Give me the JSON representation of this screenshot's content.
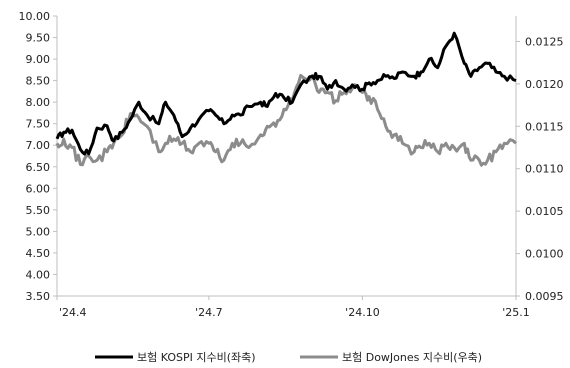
{
  "chart_data": {
    "type": "line",
    "title": "",
    "xlabel": "",
    "ylabel_left": "",
    "ylabel_right": "",
    "x_ticks": [
      "'24.4",
      "'24.7",
      "'24.10",
      "'25.1"
    ],
    "y_left": {
      "min": 3.5,
      "max": 10.0,
      "ticks": [
        "3.50",
        "4.00",
        "4.50",
        "5.00",
        "5.50",
        "6.00",
        "6.50",
        "7.00",
        "7.50",
        "8.00",
        "8.50",
        "9.00",
        "9.50",
        "10.00"
      ]
    },
    "y_right": {
      "min": 0.0095,
      "max": 0.0128,
      "ticks": [
        "0.0095",
        "0.0100",
        "0.0105",
        "0.0110",
        "0.0115",
        "0.0120",
        "0.0125"
      ]
    },
    "grid": false,
    "legend_position": "bottom",
    "colors": {
      "kospi": "#000000",
      "dow": "#8c8c8c",
      "axis": "#bfbfbf"
    },
    "series": [
      {
        "name": "보험 KOSPI 지수비(좌축)",
        "axis": "left",
        "x": [
          "2024-04-01",
          "2024-04-05",
          "2024-04-10",
          "2024-04-15",
          "2024-04-20",
          "2024-04-25",
          "2024-05-01",
          "2024-05-05",
          "2024-05-10",
          "2024-05-15",
          "2024-05-20",
          "2024-05-25",
          "2024-06-01",
          "2024-06-05",
          "2024-06-10",
          "2024-06-15",
          "2024-06-20",
          "2024-06-25",
          "2024-07-01",
          "2024-07-05",
          "2024-07-10",
          "2024-07-15",
          "2024-07-20",
          "2024-07-25",
          "2024-08-01",
          "2024-08-05",
          "2024-08-10",
          "2024-08-15",
          "2024-08-20",
          "2024-08-25",
          "2024-09-01",
          "2024-09-05",
          "2024-09-10",
          "2024-09-15",
          "2024-09-20",
          "2024-09-25",
          "2024-10-01",
          "2024-10-05",
          "2024-10-10",
          "2024-10-15",
          "2024-10-20",
          "2024-10-25",
          "2024-11-01",
          "2024-11-05",
          "2024-11-10",
          "2024-11-15",
          "2024-11-20",
          "2024-11-25",
          "2024-12-01",
          "2024-12-05",
          "2024-12-10",
          "2024-12-15",
          "2024-12-20",
          "2024-12-25",
          "2025-01-01"
        ],
        "values": [
          7.15,
          7.3,
          7.35,
          6.9,
          6.8,
          7.4,
          7.45,
          7.1,
          7.3,
          7.6,
          8.0,
          7.7,
          7.5,
          8.0,
          7.7,
          7.2,
          7.4,
          7.6,
          7.8,
          7.7,
          7.5,
          7.7,
          7.7,
          7.9,
          8.0,
          7.9,
          8.2,
          8.1,
          8.0,
          8.4,
          8.6,
          8.6,
          8.3,
          8.5,
          8.3,
          8.4,
          8.3,
          8.45,
          8.5,
          8.6,
          8.55,
          8.7,
          8.6,
          8.7,
          9.0,
          8.8,
          9.3,
          9.6,
          8.9,
          8.6,
          8.8,
          8.9,
          8.7,
          8.6,
          8.5
        ]
      },
      {
        "name": "보험 DowJones 지수비(우축)",
        "axis": "right",
        "x": [
          "2024-04-01",
          "2024-04-05",
          "2024-04-10",
          "2024-04-15",
          "2024-04-20",
          "2024-04-25",
          "2024-05-01",
          "2024-05-05",
          "2024-05-10",
          "2024-05-15",
          "2024-05-20",
          "2024-05-25",
          "2024-06-01",
          "2024-06-05",
          "2024-06-10",
          "2024-06-15",
          "2024-06-20",
          "2024-06-25",
          "2024-07-01",
          "2024-07-05",
          "2024-07-10",
          "2024-07-15",
          "2024-07-20",
          "2024-07-25",
          "2024-08-01",
          "2024-08-05",
          "2024-08-10",
          "2024-08-15",
          "2024-08-20",
          "2024-08-25",
          "2024-09-01",
          "2024-09-05",
          "2024-09-10",
          "2024-09-15",
          "2024-09-20",
          "2024-09-25",
          "2024-10-01",
          "2024-10-05",
          "2024-10-10",
          "2024-10-15",
          "2024-10-20",
          "2024-10-25",
          "2024-11-01",
          "2024-11-05",
          "2024-11-10",
          "2024-11-15",
          "2024-11-20",
          "2024-11-25",
          "2024-12-01",
          "2024-12-05",
          "2024-12-10",
          "2024-12-15",
          "2024-12-20",
          "2024-12-25",
          "2025-01-01"
        ],
        "values": [
          0.0113,
          0.01135,
          0.01125,
          0.01105,
          0.01115,
          0.0111,
          0.0112,
          0.0113,
          0.0114,
          0.01165,
          0.0116,
          0.0115,
          0.0112,
          0.0113,
          0.01135,
          0.0113,
          0.0112,
          0.0113,
          0.0113,
          0.0112,
          0.0111,
          0.0113,
          0.0113,
          0.01125,
          0.0114,
          0.0115,
          0.0115,
          0.0117,
          0.0118,
          0.0121,
          0.0121,
          0.0119,
          0.0119,
          0.0118,
          0.0119,
          0.01195,
          0.0119,
          0.01185,
          0.0117,
          0.0115,
          0.0114,
          0.0113,
          0.0112,
          0.01125,
          0.0113,
          0.0112,
          0.0113,
          0.01125,
          0.0113,
          0.0111,
          0.0111,
          0.0111,
          0.0112,
          0.0113,
          0.0113
        ]
      }
    ]
  }
}
